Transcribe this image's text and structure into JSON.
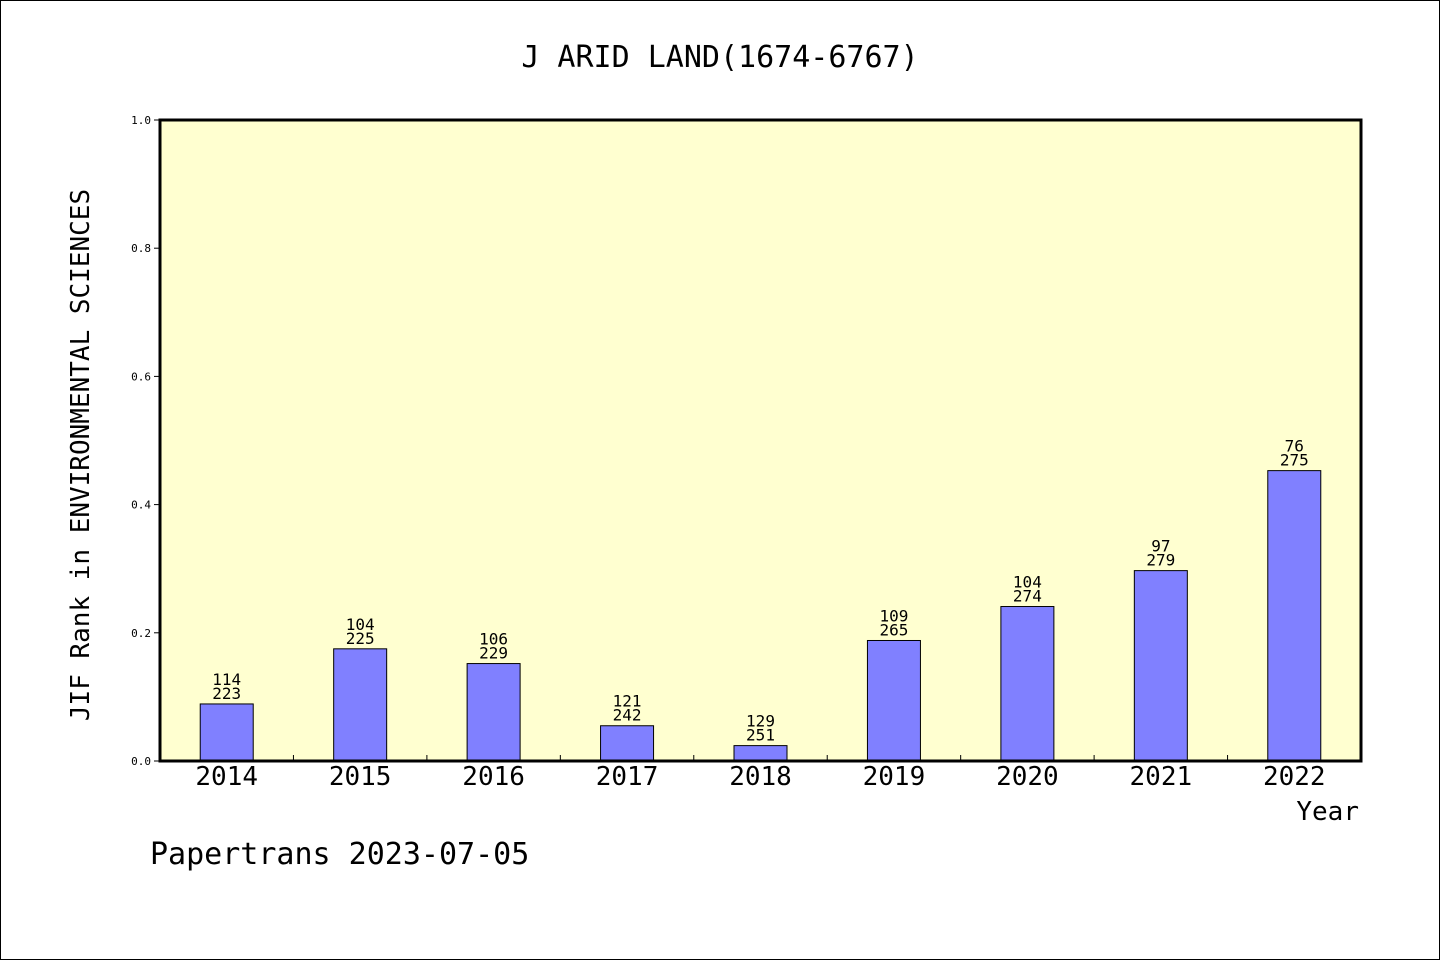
{
  "colors": {
    "background": "#ffffff",
    "plot_background": "#ffffd0",
    "bar_fill": "#8080ff",
    "axis": "#000000"
  },
  "footer": "Papertrans 2023-07-05",
  "chart_data": {
    "type": "bar",
    "title": "J ARID LAND(1674-6767)",
    "xlabel": "Year",
    "ylabel": "JIF Rank in ENVIRONMENTAL SCIENCES",
    "ylim": [
      0,
      1.0
    ],
    "y_ticks": [
      "0.0",
      "0.2",
      "0.4",
      "0.6",
      "0.8",
      "1.0"
    ],
    "grid": false,
    "categories": [
      "2014",
      "2015",
      "2016",
      "2017",
      "2018",
      "2019",
      "2020",
      "2021",
      "2022"
    ],
    "values": [
      0.089,
      0.175,
      0.152,
      0.055,
      0.024,
      0.188,
      0.241,
      0.297,
      0.453
    ],
    "rank": [
      "114",
      "104",
      "106",
      "121",
      "129",
      "109",
      "104",
      "97",
      "76"
    ],
    "total": [
      "223",
      "225",
      "229",
      "242",
      "251",
      "265",
      "274",
      "279",
      "275"
    ]
  }
}
